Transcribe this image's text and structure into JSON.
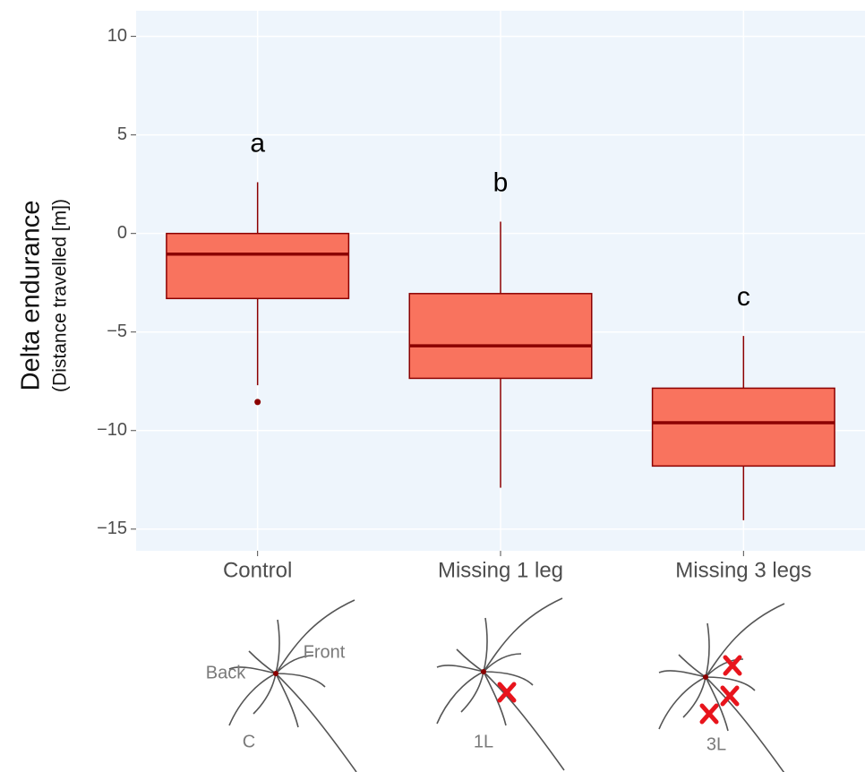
{
  "chart_data": {
    "type": "box",
    "categories": [
      "Control",
      "Missing 1 leg",
      "Missing 3 legs"
    ],
    "boxes": [
      {
        "low": -7.7,
        "q1": -3.3,
        "median": -1.05,
        "q3": 0,
        "high": 2.6,
        "outliers": [
          -8.55
        ]
      },
      {
        "low": -12.9,
        "q1": -7.35,
        "median": -5.7,
        "q3": -3.05,
        "high": 0.6,
        "outliers": []
      },
      {
        "low": -14.55,
        "q1": -11.8,
        "median": -9.6,
        "q3": -7.85,
        "high": -5.2,
        "outliers": []
      }
    ],
    "annotations": [
      "a",
      "b",
      "c"
    ],
    "y_label": "Delta endurance",
    "y_sublabel": "(Distance travelled [m])",
    "ylim": [
      -16.1,
      11.3
    ],
    "yticks": [
      {
        "value": -15,
        "label": "−15"
      },
      {
        "value": -10,
        "label": "−10"
      },
      {
        "value": -5,
        "label": "−5"
      },
      0,
      5,
      10
    ],
    "grid": true,
    "color": "#f9735e",
    "line_color": "#8b0000",
    "background": "#eef5fc"
  },
  "illustration_labels": [
    "Back",
    "Front",
    "C",
    "1L",
    "3L"
  ]
}
